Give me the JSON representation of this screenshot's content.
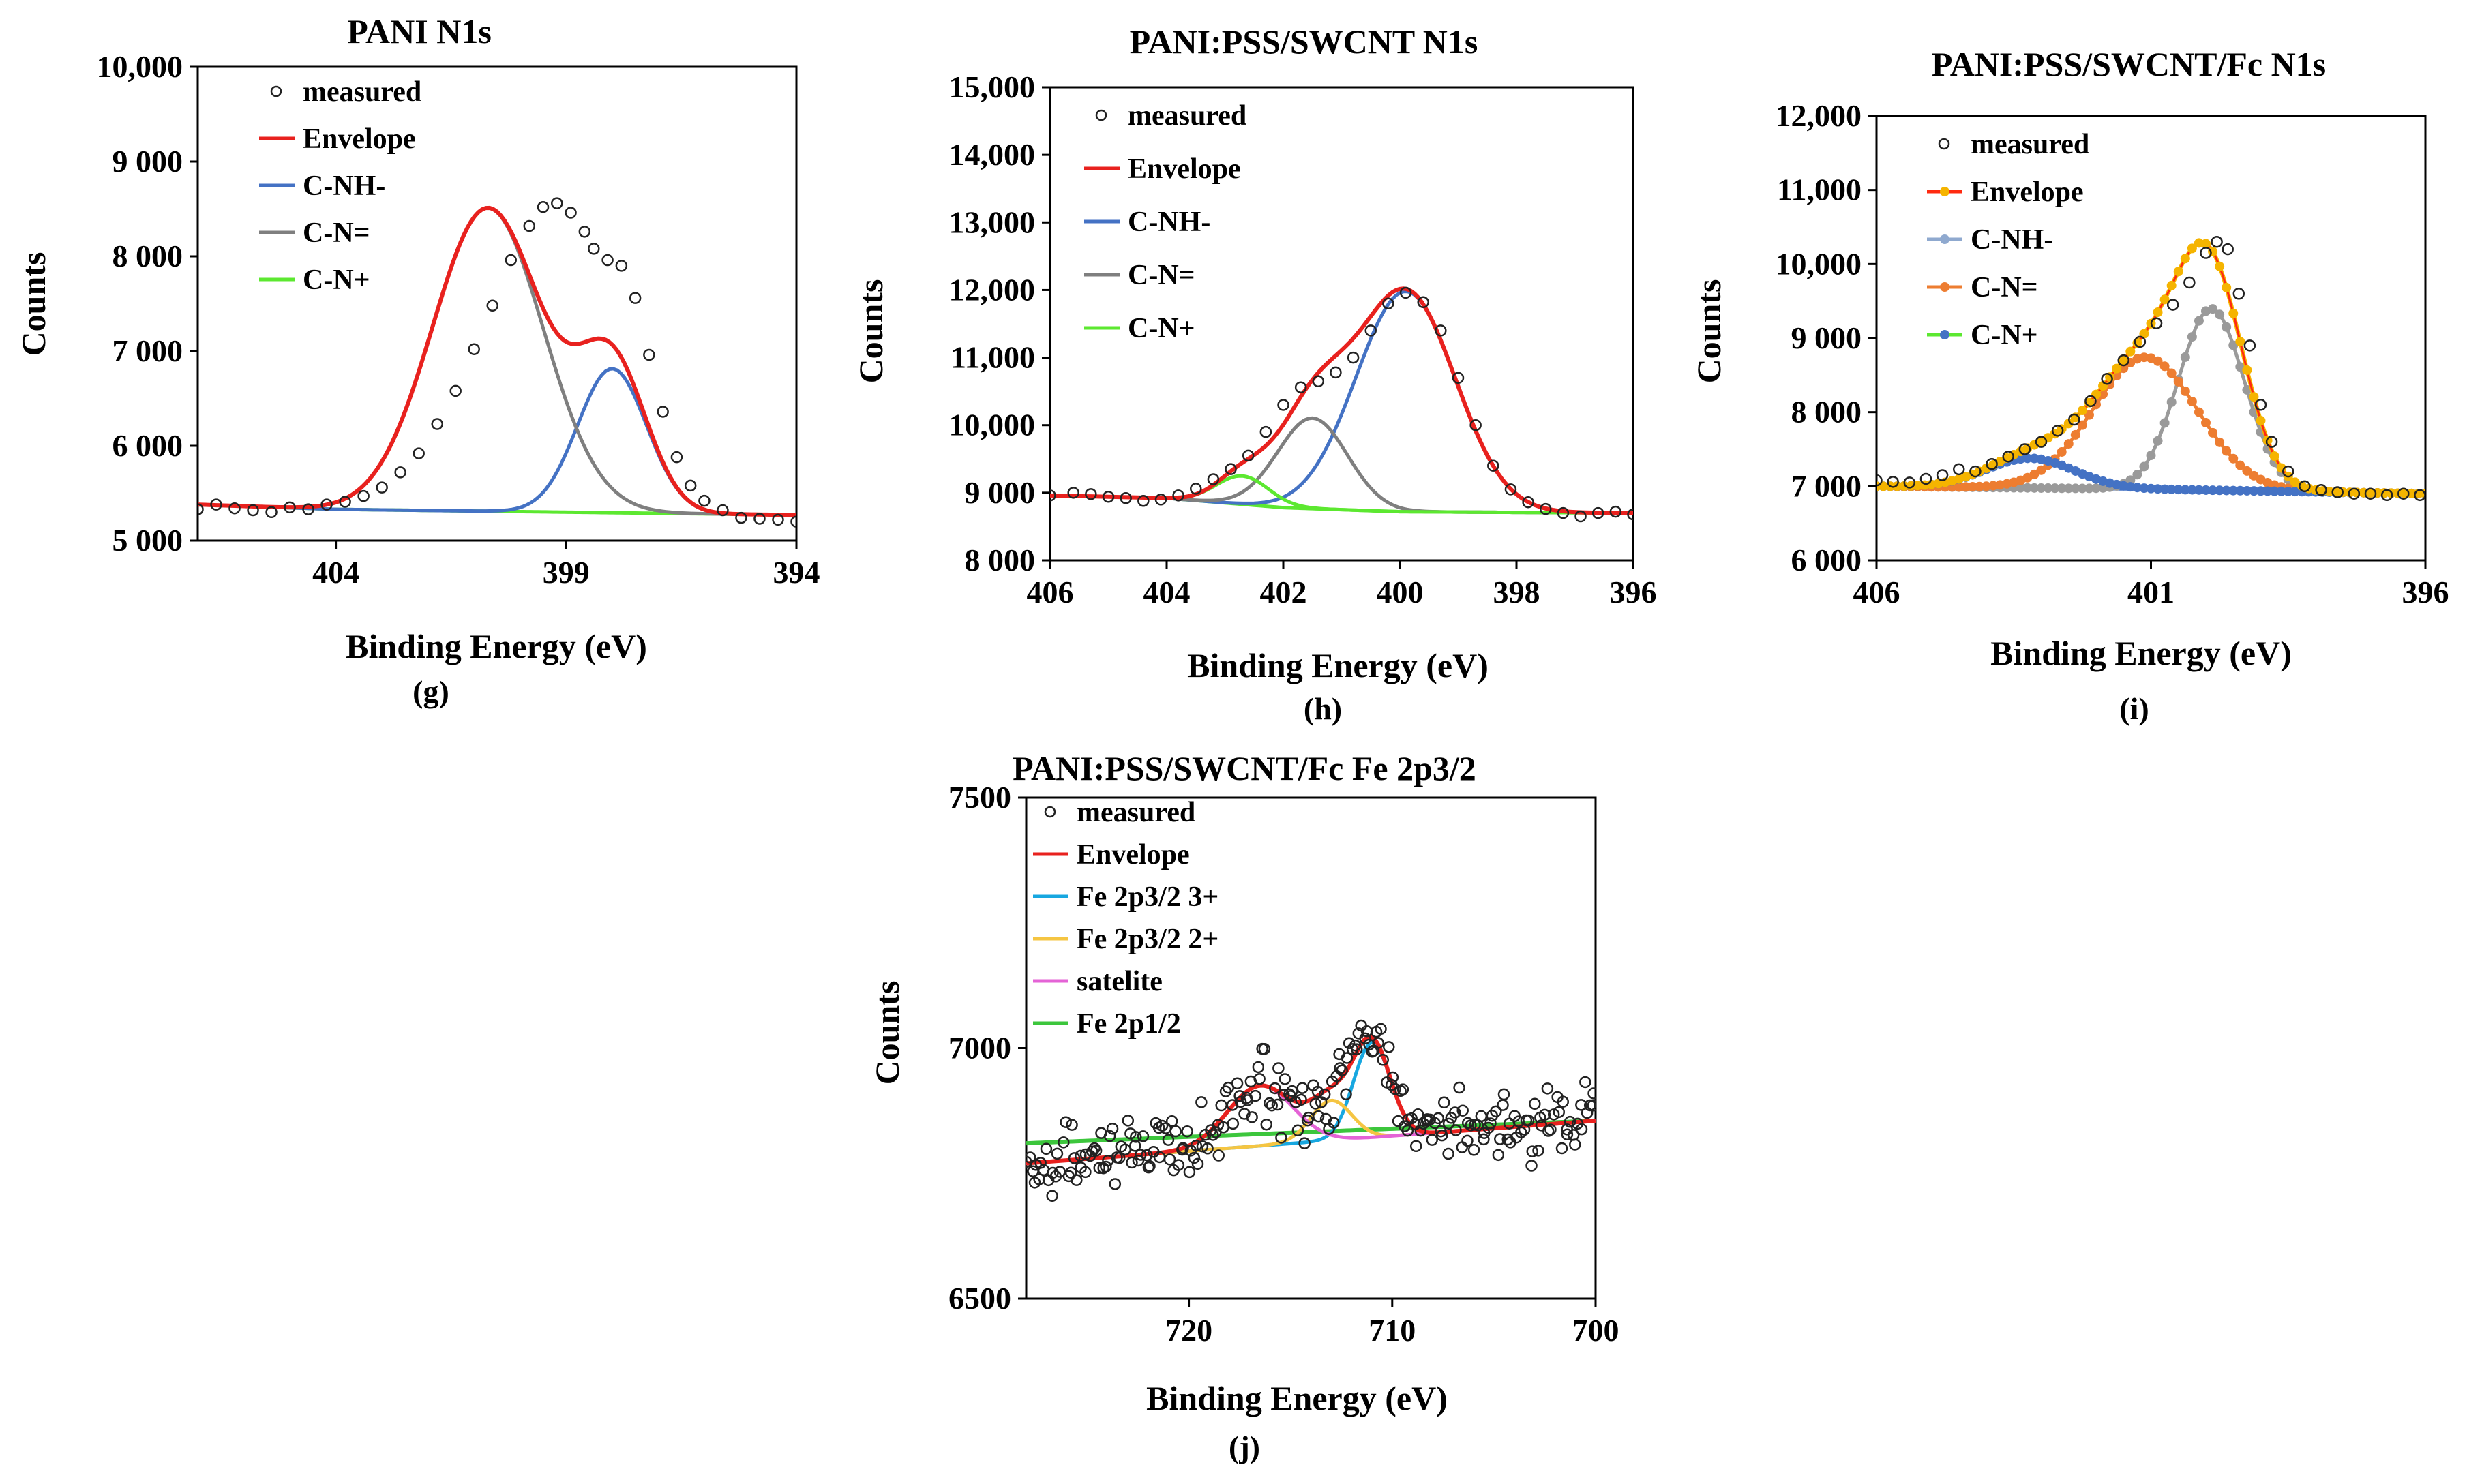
{
  "chart_data": [
    {
      "id": "g",
      "type": "scatter",
      "title": "PANI N1s",
      "panel_label": "(g)",
      "xlabel": "Binding Energy (eV)",
      "ylabel": "Counts",
      "xlim": [
        407,
        394
      ],
      "ylim": [
        5000,
        10000
      ],
      "x_reversed": true,
      "xticks": [
        404,
        399,
        394
      ],
      "xtick_labels": [
        "404",
        "399",
        "394"
      ],
      "yticks": [
        5000,
        6000,
        7000,
        8000,
        9000,
        10000
      ],
      "ytick_labels": [
        "5 000",
        "6 000",
        "7 000",
        "8 000",
        "9 000",
        "10,000"
      ],
      "grid": false,
      "legend_position": "top-left",
      "legend": [
        {
          "label": "measured",
          "kind": "marker",
          "color": "#222222"
        },
        {
          "label": "Envelope",
          "kind": "line",
          "color": "#e8211e"
        },
        {
          "label": "C-NH-",
          "kind": "line",
          "color": "#4472c4"
        },
        {
          "label": "C-N=",
          "kind": "line",
          "color": "#7f7f7f"
        },
        {
          "label": "C-N+",
          "kind": "line",
          "color": "#5ce830"
        }
      ],
      "background": {
        "x": [
          407,
          404,
          394
        ],
        "y": [
          5380,
          5330,
          5270
        ]
      },
      "components": [
        {
          "label": "C-NH-",
          "color": "#4472c4",
          "center": 398.0,
          "amplitude": 1520,
          "sigma": 0.75
        },
        {
          "label": "C-N=",
          "color": "#7f7f7f",
          "center": 400.7,
          "amplitude": 3200,
          "sigma": 1.2
        },
        {
          "label": "C-N+",
          "color": "#5ce830",
          "center": 402.5,
          "amplitude": 0,
          "sigma": 1.0
        }
      ],
      "measured": [
        [
          407,
          5330
        ],
        [
          406.6,
          5380
        ],
        [
          406.2,
          5340
        ],
        [
          405.8,
          5320
        ],
        [
          405.4,
          5300
        ],
        [
          405.0,
          5350
        ],
        [
          404.6,
          5330
        ],
        [
          404.2,
          5380
        ],
        [
          403.8,
          5410
        ],
        [
          403.4,
          5470
        ],
        [
          403.0,
          5560
        ],
        [
          402.6,
          5720
        ],
        [
          402.2,
          5920
        ],
        [
          401.8,
          6230
        ],
        [
          401.4,
          6580
        ],
        [
          401.0,
          7020
        ],
        [
          400.6,
          7480
        ],
        [
          400.2,
          7960
        ],
        [
          399.8,
          8320
        ],
        [
          399.5,
          8520
        ],
        [
          399.2,
          8560
        ],
        [
          398.9,
          8460
        ],
        [
          398.6,
          8260
        ],
        [
          398.4,
          8080
        ],
        [
          398.1,
          7960
        ],
        [
          397.8,
          7900
        ],
        [
          397.5,
          7560
        ],
        [
          397.2,
          6960
        ],
        [
          396.9,
          6360
        ],
        [
          396.6,
          5880
        ],
        [
          396.3,
          5580
        ],
        [
          396.0,
          5420
        ],
        [
          395.6,
          5320
        ],
        [
          395.2,
          5240
        ],
        [
          394.8,
          5230
        ],
        [
          394.4,
          5220
        ],
        [
          394.0,
          5200
        ]
      ]
    },
    {
      "id": "h",
      "type": "scatter",
      "title": "PANI:PSS/SWCNT  N1s",
      "panel_label": "(h)",
      "xlabel": "Binding Energy (eV)",
      "ylabel": "Counts",
      "xlim": [
        406,
        396
      ],
      "ylim": [
        8000,
        15000
      ],
      "x_reversed": true,
      "xticks": [
        406,
        404,
        402,
        400,
        398,
        396
      ],
      "xtick_labels": [
        "406",
        "404",
        "402",
        "400",
        "398",
        "396"
      ],
      "yticks": [
        8000,
        9000,
        10000,
        11000,
        12000,
        13000,
        14000,
        15000
      ],
      "ytick_labels": [
        "8 000",
        "9 000",
        "10,000",
        "11,000",
        "12,000",
        "13,000",
        "14,000",
        "15,000"
      ],
      "grid": false,
      "legend_position": "top-left",
      "legend": [
        {
          "label": "measured",
          "kind": "marker",
          "color": "#222222"
        },
        {
          "label": "Envelope",
          "kind": "line",
          "color": "#e8211e"
        },
        {
          "label": "C-NH-",
          "kind": "line",
          "color": "#4472c4"
        },
        {
          "label": "C-N=",
          "kind": "line",
          "color": "#7f7f7f"
        },
        {
          "label": "C-N+",
          "kind": "line",
          "color": "#5ce830"
        }
      ],
      "background": {
        "x": [
          406,
          404,
          402,
          400,
          396
        ],
        "y": [
          8960,
          8920,
          8780,
          8720,
          8700
        ]
      },
      "components": [
        {
          "label": "C-NH-",
          "color": "#4472c4",
          "center": 399.9,
          "amplitude": 3260,
          "sigma": 0.85
        },
        {
          "label": "C-N=",
          "color": "#7f7f7f",
          "center": 401.5,
          "amplitude": 1340,
          "sigma": 0.6
        },
        {
          "label": "C-N+",
          "color": "#5ce830",
          "center": 402.7,
          "amplitude": 420,
          "sigma": 0.45
        }
      ],
      "measured": [
        [
          406,
          8960
        ],
        [
          405.6,
          9000
        ],
        [
          405.3,
          8980
        ],
        [
          405.0,
          8940
        ],
        [
          404.7,
          8920
        ],
        [
          404.4,
          8880
        ],
        [
          404.1,
          8900
        ],
        [
          403.8,
          8960
        ],
        [
          403.5,
          9060
        ],
        [
          403.2,
          9200
        ],
        [
          402.9,
          9350
        ],
        [
          402.6,
          9550
        ],
        [
          402.3,
          9900
        ],
        [
          402.0,
          10300
        ],
        [
          401.7,
          10560
        ],
        [
          401.4,
          10650
        ],
        [
          401.1,
          10780
        ],
        [
          400.8,
          11000
        ],
        [
          400.5,
          11400
        ],
        [
          400.2,
          11800
        ],
        [
          399.9,
          11960
        ],
        [
          399.6,
          11820
        ],
        [
          399.3,
          11400
        ],
        [
          399.0,
          10700
        ],
        [
          398.7,
          10000
        ],
        [
          398.4,
          9400
        ],
        [
          398.1,
          9050
        ],
        [
          397.8,
          8860
        ],
        [
          397.5,
          8760
        ],
        [
          397.2,
          8700
        ],
        [
          396.9,
          8650
        ],
        [
          396.6,
          8700
        ],
        [
          396.3,
          8720
        ],
        [
          396.0,
          8680
        ]
      ]
    },
    {
      "id": "i",
      "type": "scatter",
      "title": "PANI:PSS/SWCNT/Fc N1s",
      "panel_label": "(i)",
      "xlabel": "Binding Energy (eV)",
      "ylabel": "Counts",
      "xlim": [
        406,
        396
      ],
      "ylim": [
        6000,
        12000
      ],
      "x_reversed": true,
      "xticks": [
        406,
        401,
        396
      ],
      "xtick_labels": [
        "406",
        "401",
        "396"
      ],
      "yticks": [
        6000,
        7000,
        8000,
        9000,
        10000,
        11000,
        12000
      ],
      "ytick_labels": [
        "6 000",
        "7 000",
        "8 000",
        "9 000",
        "10,000",
        "11,000",
        "12,000"
      ],
      "grid": false,
      "legend_position": "top-left",
      "legend": [
        {
          "label": "measured",
          "kind": "marker",
          "color": "#222222"
        },
        {
          "label": "Envelope",
          "kind": "linemarker",
          "color": "#ff2a10",
          "marker_color": "#f5b400"
        },
        {
          "label": "C-NH-",
          "kind": "linemarker",
          "color": "#8fa9cf",
          "marker_color": "#8fa9cf"
        },
        {
          "label": "C-N=",
          "kind": "linemarker",
          "color": "#ed7d31",
          "marker_color": "#ed7d31"
        },
        {
          "label": "C-N+",
          "kind": "linemarker",
          "color": "#4472c4",
          "marker_color": "#4472c4",
          "line_color": "#5ce830"
        }
      ],
      "background": {
        "x": [
          406,
          401,
          396
        ],
        "y": [
          7000,
          6960,
          6900
        ]
      },
      "components": [
        {
          "label": "C-NH-",
          "color": "#9a9a9a",
          "center": 399.9,
          "amplitude": 2450,
          "sigma": 0.6
        },
        {
          "label": "C-N=",
          "color": "#ed7d31",
          "center": 401.1,
          "amplitude": 1780,
          "sigma": 0.95
        },
        {
          "label": "C-N+",
          "color": "#4472c4",
          "center": 403.2,
          "amplitude": 400,
          "sigma": 0.8
        }
      ],
      "measured": [
        [
          406,
          7080
        ],
        [
          405.7,
          7060
        ],
        [
          405.4,
          7050
        ],
        [
          405.1,
          7100
        ],
        [
          404.8,
          7150
        ],
        [
          404.5,
          7230
        ],
        [
          404.2,
          7200
        ],
        [
          403.9,
          7300
        ],
        [
          403.6,
          7400
        ],
        [
          403.3,
          7500
        ],
        [
          403.0,
          7600
        ],
        [
          402.7,
          7750
        ],
        [
          402.4,
          7900
        ],
        [
          402.1,
          8150
        ],
        [
          401.8,
          8450
        ],
        [
          401.5,
          8700
        ],
        [
          401.2,
          8950
        ],
        [
          400.9,
          9200
        ],
        [
          400.6,
          9450
        ],
        [
          400.3,
          9750
        ],
        [
          400.0,
          10150
        ],
        [
          399.8,
          10300
        ],
        [
          399.6,
          10200
        ],
        [
          399.4,
          9600
        ],
        [
          399.2,
          8900
        ],
        [
          399.0,
          8100
        ],
        [
          398.8,
          7600
        ],
        [
          398.5,
          7200
        ],
        [
          398.2,
          7000
        ],
        [
          397.9,
          6950
        ],
        [
          397.6,
          6920
        ],
        [
          397.3,
          6900
        ],
        [
          397.0,
          6900
        ],
        [
          396.7,
          6880
        ],
        [
          396.4,
          6900
        ],
        [
          396.1,
          6880
        ]
      ]
    },
    {
      "id": "j",
      "type": "scatter",
      "title": "PANI:PSS/SWCNT/Fc  Fe 2p3/2",
      "panel_label": "(j)",
      "xlabel": "Binding Energy (eV)",
      "ylabel": "Counts",
      "xlim": [
        728,
        700
      ],
      "ylim": [
        6500,
        7500
      ],
      "x_reversed": true,
      "xticks": [
        720,
        710,
        700
      ],
      "xtick_labels": [
        "720",
        "710",
        "700"
      ],
      "yticks": [
        6500,
        7000,
        7500
      ],
      "ytick_labels": [
        "6500",
        "7000",
        "7500"
      ],
      "grid": false,
      "legend_position": "top-left",
      "legend": [
        {
          "label": "measured",
          "kind": "marker",
          "color": "#222222"
        },
        {
          "label": "Envelope",
          "kind": "line",
          "color": "#e8211e"
        },
        {
          "label": "Fe 2p3/2 3+",
          "kind": "line",
          "color": "#17a7e0"
        },
        {
          "label": "Fe 2p3/2 2+",
          "kind": "line",
          "color": "#f5c542"
        },
        {
          "label": "satelite",
          "kind": "line",
          "color": "#e463d6"
        },
        {
          "label": "Fe 2p1/2",
          "kind": "line",
          "color": "#3cc63c"
        }
      ],
      "background": {
        "x": [
          728,
          700
        ],
        "y": [
          6770,
          6855
        ]
      },
      "fe_background": {
        "x": [
          728,
          700
        ],
        "y": [
          6810,
          6855
        ]
      },
      "components": [
        {
          "label": "Fe 2p3/2 3+",
          "color": "#17a7e0",
          "center": 711.0,
          "amplitude": 190,
          "sigma": 0.9
        },
        {
          "label": "Fe 2p3/2 2+",
          "color": "#f5c542",
          "center": 713.0,
          "amplitude": 80,
          "sigma": 1.0
        },
        {
          "label": "satelite",
          "color": "#e463d6",
          "center": 716.5,
          "amplitude": 120,
          "sigma": 1.6
        }
      ],
      "measured_trend": [
        [
          728,
          6770
        ],
        [
          726,
          6780
        ],
        [
          724,
          6790
        ],
        [
          722,
          6790
        ],
        [
          720,
          6800
        ],
        [
          718,
          6880
        ],
        [
          716.5,
          6930
        ],
        [
          715,
          6900
        ],
        [
          714,
          6880
        ],
        [
          713,
          6920
        ],
        [
          712,
          6990
        ],
        [
          711,
          7040
        ],
        [
          710,
          6950
        ],
        [
          709,
          6860
        ],
        [
          708,
          6840
        ],
        [
          706,
          6850
        ],
        [
          704,
          6840
        ],
        [
          702,
          6850
        ],
        [
          700,
          6860
        ]
      ],
      "measured_noise": 70,
      "measured_count": 240
    }
  ]
}
